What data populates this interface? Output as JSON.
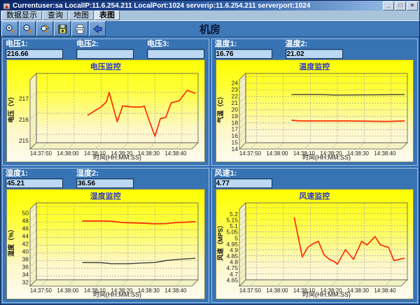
{
  "window": {
    "title": "Currentuser:sa LocalIP:11.6.254.211 LocalPort:1024 serverip:11.6.254.211 serverport:1024",
    "controls": [
      {
        "name": "minimize",
        "glyph": "_"
      },
      {
        "name": "restore",
        "glyph": "□"
      },
      {
        "name": "close",
        "glyph": "×"
      }
    ]
  },
  "menu": {
    "active_index": 3,
    "items": [
      {
        "key": "data-display",
        "label": "数据显示"
      },
      {
        "key": "query",
        "label": "查询"
      },
      {
        "key": "map",
        "label": "地图"
      },
      {
        "key": "chart-view",
        "label": "表图"
      }
    ]
  },
  "toolbar": {
    "title": "机房",
    "buttons": [
      {
        "name": "zoom-in",
        "icon": "magnifier-plus-icon"
      },
      {
        "name": "zoom-out",
        "icon": "magnifier-minus-icon"
      },
      {
        "name": "annotate",
        "icon": "magnifier-pencil-icon"
      },
      {
        "name": "save",
        "icon": "floppy-disk-icon"
      },
      {
        "name": "print",
        "icon": "printer-icon"
      },
      {
        "name": "back",
        "icon": "left-arrow-icon"
      }
    ]
  },
  "panels": [
    {
      "key": "voltage",
      "fields": [
        {
          "label": "电压1:",
          "value": "216.66"
        },
        {
          "label": "电压2:",
          "value": ""
        },
        {
          "label": "电压3:",
          "value": ""
        }
      ]
    },
    {
      "key": "temperature",
      "fields": [
        {
          "label": "温度1:",
          "value": "16.76"
        },
        {
          "label": "温度2:",
          "value": "21.02"
        }
      ]
    },
    {
      "key": "humidity",
      "fields": [
        {
          "label": "湿度1:",
          "value": "45.21"
        },
        {
          "label": "湿度2:",
          "value": "36.56"
        }
      ]
    },
    {
      "key": "wind",
      "fields": [
        {
          "label": "风速1:",
          "value": "4.77"
        }
      ]
    }
  ],
  "chart_data": [
    {
      "type": "line",
      "title": "电压监控",
      "xlabel": "时间(HH:MM:SS)",
      "ylabel": "电压（V）",
      "x_range": [
        "14:37:46",
        "14:38:46"
      ],
      "x_ticks": [
        "14:37:50",
        "14:38:00",
        "14:38:10",
        "14:38:20",
        "14:38:30",
        "14:38:40"
      ],
      "y_range": [
        214.6,
        217.9
      ],
      "y_ticks": [
        215,
        216,
        217
      ],
      "y_tick_labels": [
        "215",
        "216",
        "217"
      ],
      "grid": true,
      "series": [
        {
          "name": "电压1",
          "color": "#ff2e00",
          "width": 1.7,
          "points": [
            [
              "14:38:05",
              215.9
            ],
            [
              "14:38:08",
              216.15
            ],
            [
              "14:38:10",
              216.3
            ],
            [
              "14:38:12",
              216.55
            ],
            [
              "14:38:13",
              217.0
            ],
            [
              "14:38:16",
              215.6
            ],
            [
              "14:38:18",
              216.35
            ],
            [
              "14:38:22",
              216.3
            ],
            [
              "14:38:25",
              216.3
            ],
            [
              "14:38:26",
              216.35
            ],
            [
              "14:38:28",
              215.6
            ],
            [
              "14:38:30",
              214.9
            ],
            [
              "14:38:32",
              215.75
            ],
            [
              "14:38:34",
              215.8
            ],
            [
              "14:38:36",
              216.5
            ],
            [
              "14:38:39",
              216.6
            ],
            [
              "14:38:42",
              217.1
            ],
            [
              "14:38:45",
              216.95
            ]
          ]
        }
      ]
    },
    {
      "type": "line",
      "title": "温度监控",
      "xlabel": "时间(HH:MM:SS)",
      "ylabel": "气温（C）",
      "x_range": [
        "14:37:46",
        "14:38:46"
      ],
      "x_ticks": [
        "14:37:50",
        "14:38:00",
        "14:38:10",
        "14:38:20",
        "14:38:30",
        "14:38:40"
      ],
      "y_range": [
        14,
        24.5
      ],
      "y_ticks": [
        14,
        15,
        16,
        17,
        18,
        19,
        20,
        21,
        22,
        23,
        24
      ],
      "y_tick_labels": [
        "14",
        "15",
        "16",
        "17",
        "18",
        "19",
        "20",
        "21",
        "22",
        "23",
        "24"
      ],
      "grid": true,
      "series": [
        {
          "name": "温度2",
          "color": "#404040",
          "width": 1.4,
          "points": [
            [
              "14:38:03",
              21.3
            ],
            [
              "14:38:15",
              21.3
            ],
            [
              "14:38:19",
              21.22
            ],
            [
              "14:38:45",
              21.3
            ]
          ]
        },
        {
          "name": "温度1",
          "color": "#ff2e00",
          "width": 1.7,
          "points": [
            [
              "14:38:03",
              17.4
            ],
            [
              "14:38:06",
              17.3
            ],
            [
              "14:38:25",
              17.3
            ],
            [
              "14:38:38",
              17.22
            ],
            [
              "14:38:45",
              17.3
            ]
          ]
        }
      ]
    },
    {
      "type": "line",
      "title": "湿度监控",
      "xlabel": "时间(HH:MM:SS)",
      "ylabel": "湿度（%）",
      "x_range": [
        "14:37:46",
        "14:38:46"
      ],
      "x_ticks": [
        "14:37:50",
        "14:38:00",
        "14:38:10",
        "14:38:20",
        "14:38:30",
        "14:38:40"
      ],
      "y_range": [
        31,
        51
      ],
      "y_ticks": [
        32,
        34,
        36,
        38,
        40,
        42,
        44,
        46,
        48,
        50
      ],
      "y_tick_labels": [
        "32",
        "34",
        "36",
        "38",
        "40",
        "42",
        "44",
        "46",
        "48",
        "50"
      ],
      "grid": true,
      "series": [
        {
          "name": "湿度1",
          "color": "#ff2e00",
          "width": 1.7,
          "points": [
            [
              "14:38:03",
              46.3
            ],
            [
              "14:38:10",
              46.3
            ],
            [
              "14:38:14",
              46.2
            ],
            [
              "14:38:18",
              45.9
            ],
            [
              "14:38:22",
              45.8
            ],
            [
              "14:38:26",
              45.7
            ],
            [
              "14:38:30",
              45.55
            ],
            [
              "14:38:34",
              45.6
            ],
            [
              "14:38:38",
              45.9
            ],
            [
              "14:38:42",
              46.0
            ],
            [
              "14:38:45",
              46.1
            ]
          ]
        },
        {
          "name": "湿度2",
          "color": "#404040",
          "width": 1.4,
          "points": [
            [
              "14:38:03",
              35.5
            ],
            [
              "14:38:10",
              35.45
            ],
            [
              "14:38:14",
              35.2
            ],
            [
              "14:38:20",
              35.2
            ],
            [
              "14:38:26",
              35.4
            ],
            [
              "14:38:30",
              35.5
            ],
            [
              "14:38:34",
              36.0
            ],
            [
              "14:38:38",
              36.3
            ],
            [
              "14:38:45",
              36.6
            ]
          ]
        }
      ]
    },
    {
      "type": "line",
      "title": "风速监控",
      "xlabel": "时间(HH:MM:SS)",
      "ylabel": "风速（MPS）",
      "x_range": [
        "14:37:46",
        "14:38:46"
      ],
      "x_ticks": [
        "14:37:50",
        "14:38:00",
        "14:38:10",
        "14:38:20",
        "14:38:30",
        "14:38:40"
      ],
      "y_range": [
        4.6,
        5.24
      ],
      "y_ticks": [
        4.65,
        4.7,
        4.75,
        4.8,
        4.85,
        4.9,
        4.95,
        5,
        5.05,
        5.1,
        5.15,
        5.2
      ],
      "y_tick_labels": [
        "4.65",
        "4.7",
        "4.75",
        "4.8",
        "4.85",
        "4.9",
        "4.95",
        "5",
        "5.05",
        "5.1",
        "5.15",
        "5.2"
      ],
      "grid": true,
      "series": [
        {
          "name": "风速1",
          "color": "#ff2e00",
          "width": 1.7,
          "points": [
            [
              "14:38:04",
              5.12
            ],
            [
              "14:38:07",
              4.79
            ],
            [
              "14:38:09",
              4.87
            ],
            [
              "14:38:11",
              4.9
            ],
            [
              "14:38:13",
              4.92
            ],
            [
              "14:38:15",
              4.81
            ],
            [
              "14:38:17",
              4.77
            ],
            [
              "14:38:19",
              4.75
            ],
            [
              "14:38:20",
              4.73
            ],
            [
              "14:38:23",
              4.85
            ],
            [
              "14:38:26",
              4.77
            ],
            [
              "14:38:29",
              4.92
            ],
            [
              "14:38:31",
              4.89
            ],
            [
              "14:38:34",
              4.96
            ],
            [
              "14:38:36",
              4.89
            ],
            [
              "14:38:39",
              4.87
            ],
            [
              "14:38:41",
              4.76
            ],
            [
              "14:38:45",
              4.78
            ]
          ]
        }
      ]
    }
  ],
  "colors": {
    "panel_blue": "#3873b3",
    "titlebar_left": "#0a246a",
    "titlebar_right": "#a6caf0",
    "chart_yellow": "#ffff00",
    "chart_wall": "#f5f2c2",
    "series_red": "#ff2e00",
    "series_dark": "#404040",
    "input_bg": "#bcd8f4",
    "chart_title_blue": "#3038c8"
  }
}
